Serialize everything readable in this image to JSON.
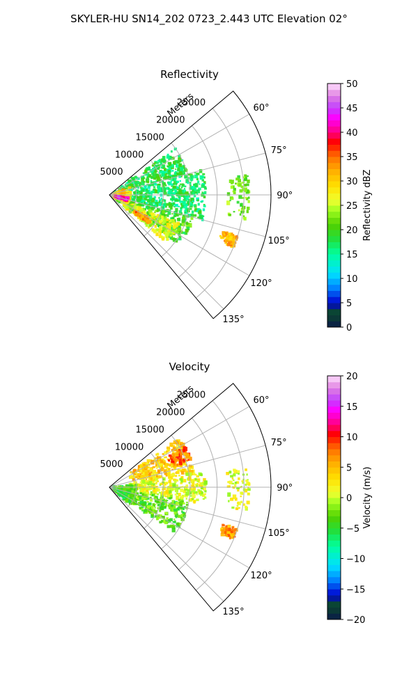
{
  "figure": {
    "suptitle": "SKYLER-HU  SN14_202  0723_2.443 UTC Elevation 02°"
  },
  "chart_data": [
    {
      "type": "polar_sector",
      "title": "Reflectivity",
      "radial_label": "Meters",
      "r_range": [
        0,
        30000
      ],
      "theta_range_deg": [
        50,
        140
      ],
      "r_ticks": [
        5000,
        10000,
        15000,
        20000,
        25000
      ],
      "r_tick_labels": [
        "5000",
        "10000",
        "15000",
        "20000",
        "25000"
      ],
      "theta_ticks": [
        60,
        75,
        90,
        105,
        120,
        135
      ],
      "theta_tick_labels": [
        "60°",
        "75°",
        "90°",
        "105°",
        "120°",
        "135°"
      ],
      "grid": true,
      "colorbar": {
        "label": "Reflectivity dBZ",
        "range": [
          0,
          50
        ],
        "ticks": [
          0,
          5,
          10,
          15,
          20,
          25,
          30,
          35,
          40,
          45,
          50
        ],
        "tick_labels": [
          "0",
          "5",
          "10",
          "15",
          "20",
          "25",
          "30",
          "35",
          "40",
          "45",
          "50"
        ]
      },
      "echo_features": [
        {
          "az_range": [
            55,
            75
          ],
          "r_range": [
            1000,
            15000
          ],
          "value": 18
        },
        {
          "az_range": [
            75,
            105
          ],
          "r_range": [
            1000,
            18000
          ],
          "value": 17
        },
        {
          "az_range": [
            105,
            125
          ],
          "r_range": [
            1000,
            16000
          ],
          "value": 20
        },
        {
          "az_range": [
            112,
            130
          ],
          "r_range": [
            2000,
            14000
          ],
          "value": 26
        },
        {
          "az_range": [
            70,
            115
          ],
          "r_range": [
            0,
            4000
          ],
          "value": 30
        },
        {
          "az_range": [
            100,
            106
          ],
          "r_range": [
            1000,
            3500
          ],
          "value": 42
        },
        {
          "az_range": [
            120,
            126
          ],
          "r_range": [
            5500,
            9000
          ],
          "value": 34
        },
        {
          "az_range": [
            82,
            100
          ],
          "r_range": [
            22000,
            26000
          ],
          "value": 22
        },
        {
          "az_range": [
            108,
            113
          ],
          "r_range": [
            22000,
            25000
          ],
          "value": 32
        }
      ]
    },
    {
      "type": "polar_sector",
      "title": "Velocity",
      "radial_label": "Meters",
      "r_range": [
        0,
        30000
      ],
      "theta_range_deg": [
        50,
        140
      ],
      "r_ticks": [
        5000,
        10000,
        15000,
        20000,
        25000
      ],
      "r_tick_labels": [
        "5000",
        "10000",
        "15000",
        "20000",
        "25000"
      ],
      "theta_ticks": [
        60,
        75,
        90,
        105,
        120,
        135
      ],
      "theta_tick_labels": [
        "60°",
        "75°",
        "90°",
        "105°",
        "120°",
        "135°"
      ],
      "grid": true,
      "colorbar": {
        "label": "Velocity (m/s)",
        "range": [
          -20,
          20
        ],
        "ticks": [
          -20,
          -15,
          -10,
          -5,
          0,
          5,
          10,
          15,
          20
        ],
        "tick_labels": [
          "−20",
          "−15",
          "−10",
          "−5",
          "0",
          "5",
          "10",
          "15",
          "20"
        ]
      },
      "echo_features": [
        {
          "az_range": [
            55,
            80
          ],
          "r_range": [
            4000,
            16000
          ],
          "value": 4
        },
        {
          "az_range": [
            80,
            100
          ],
          "r_range": [
            3000,
            18000
          ],
          "value": 1
        },
        {
          "az_range": [
            100,
            125
          ],
          "r_range": [
            1000,
            15000
          ],
          "value": -3
        },
        {
          "az_range": [
            85,
            130
          ],
          "r_range": [
            0,
            5000
          ],
          "value": -4
        },
        {
          "az_range": [
            62,
            72
          ],
          "r_range": [
            12000,
            16000
          ],
          "value": 8
        },
        {
          "az_range": [
            82,
            100
          ],
          "r_range": [
            22000,
            26000
          ],
          "value": 1
        },
        {
          "az_range": [
            108,
            113
          ],
          "r_range": [
            22000,
            25000
          ],
          "value": 6
        }
      ]
    }
  ]
}
